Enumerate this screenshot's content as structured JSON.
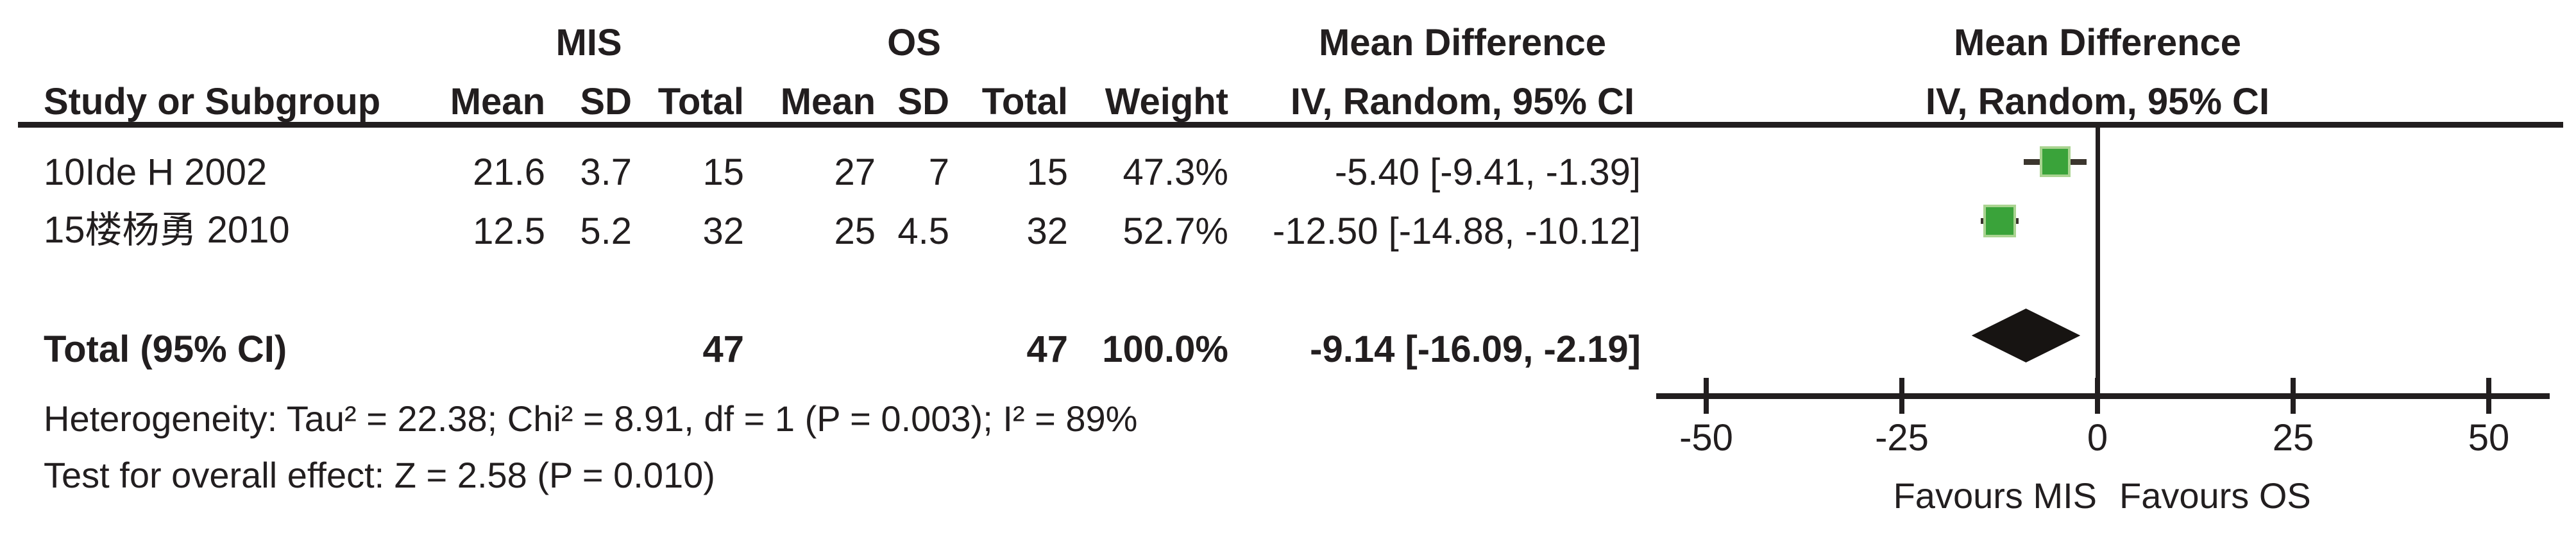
{
  "header": {
    "group1": "MIS",
    "group2": "OS",
    "md_title_left": "Mean Difference",
    "md_title_right": "Mean Difference",
    "col_study": "Study or Subgroup",
    "col_mean1": "Mean",
    "col_sd1": "SD",
    "col_total1": "Total",
    "col_mean2": "Mean",
    "col_sd2": "SD",
    "col_total2": "Total",
    "col_weight": "Weight",
    "col_ci_left": "IV, Random, 95% CI",
    "col_ci_right": "IV, Random, 95% CI"
  },
  "rows": [
    {
      "study": "10Ide H 2002",
      "mean1": "21.6",
      "sd1": "3.7",
      "total1": "15",
      "mean2": "27",
      "sd2": "7",
      "total2": "15",
      "weight": "47.3%",
      "ci": "-5.40 [-9.41, -1.39]"
    },
    {
      "study": "15楼杨勇 2010",
      "mean1": "12.5",
      "sd1": "5.2",
      "total1": "32",
      "mean2": "25",
      "sd2": "4.5",
      "total2": "32",
      "weight": "52.7%",
      "ci": "-12.50 [-14.88, -10.12]"
    }
  ],
  "total_row": {
    "label": "Total (95% CI)",
    "total1": "47",
    "total2": "47",
    "weight": "100.0%",
    "ci": "-9.14 [-16.09, -2.19]"
  },
  "footer": {
    "heterogeneity": "Heterogeneity: Tau² = 22.38; Chi² = 8.91, df = 1 (P = 0.003); I² = 89%",
    "overall_effect": "Test for overall effect: Z = 2.58 (P = 0.010)"
  },
  "colors": {
    "text": "#221e1f",
    "square_fill": "#3aa33a",
    "square_border": "#aad491",
    "whisker": "#3b362e",
    "diamond": "#171412",
    "axis": "#221e1f"
  },
  "chart_data": {
    "type": "forest",
    "effect_measure": "Mean Difference",
    "model": "IV, Random, 95% CI",
    "studies": [
      {
        "name": "10Ide H 2002",
        "mis": {
          "mean": 21.6,
          "sd": 3.7,
          "total": 15
        },
        "os": {
          "mean": 27,
          "sd": 7,
          "total": 15
        },
        "weight_pct": 47.3,
        "md": -5.4,
        "ci_lo": -9.41,
        "ci_hi": -1.39
      },
      {
        "name": "15楼杨勇 2010",
        "mis": {
          "mean": 12.5,
          "sd": 5.2,
          "total": 32
        },
        "os": {
          "mean": 25,
          "sd": 4.5,
          "total": 32
        },
        "weight_pct": 52.7,
        "md": -12.5,
        "ci_lo": -14.88,
        "ci_hi": -10.12
      }
    ],
    "total": {
      "label": "Total (95% CI)",
      "mis_total": 47,
      "os_total": 47,
      "weight_pct": 100.0,
      "md": -9.14,
      "ci_lo": -16.09,
      "ci_hi": -2.19
    },
    "heterogeneity": {
      "tau2": 22.38,
      "chi2": 8.91,
      "df": 1,
      "p": 0.003,
      "i2_pct": 89
    },
    "overall_effect": {
      "z": 2.58,
      "p": 0.01
    },
    "axis": {
      "min": -50,
      "max": 50,
      "ticks": [
        -50,
        -25,
        0,
        25,
        50
      ],
      "favours_left": "Favours MIS",
      "favours_right": "Favours OS"
    }
  }
}
